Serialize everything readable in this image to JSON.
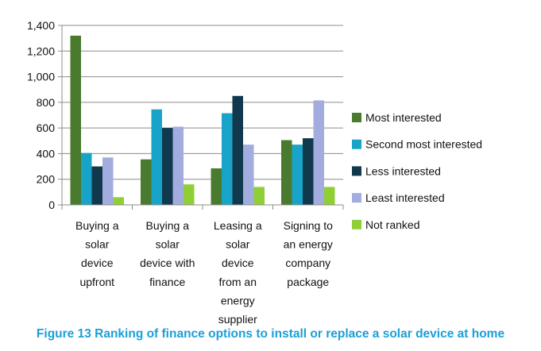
{
  "caption": "Figure 13  Ranking of finance options to install or replace a solar device at home",
  "chart_data": {
    "type": "bar",
    "categories": [
      [
        "Buying a",
        "solar",
        "device",
        "upfront"
      ],
      [
        "Buying a",
        "solar",
        "device with",
        "finance"
      ],
      [
        "Leasing a",
        "solar",
        "device",
        "from an",
        "energy",
        "supplier"
      ],
      [
        "Signing to",
        "an energy",
        "company",
        "package"
      ]
    ],
    "series": [
      {
        "name": "Most interested",
        "color": "#4a7a2e",
        "values": [
          1320,
          355,
          285,
          505
        ]
      },
      {
        "name": "Second most interested",
        "color": "#18a4c8",
        "values": [
          405,
          745,
          715,
          470
        ]
      },
      {
        "name": "Less interested",
        "color": "#11394d",
        "values": [
          300,
          600,
          850,
          520
        ]
      },
      {
        "name": "Least interested",
        "color": "#a3acdf",
        "values": [
          370,
          610,
          470,
          815
        ]
      },
      {
        "name": "Not ranked",
        "color": "#8fcf35",
        "values": [
          60,
          160,
          140,
          140
        ]
      }
    ],
    "y_ticks": [
      "0",
      "200",
      "400",
      "600",
      "800",
      "1,000",
      "1,200",
      "1,400"
    ],
    "ylim": [
      0,
      1400
    ],
    "grid": true,
    "legend": "right"
  }
}
